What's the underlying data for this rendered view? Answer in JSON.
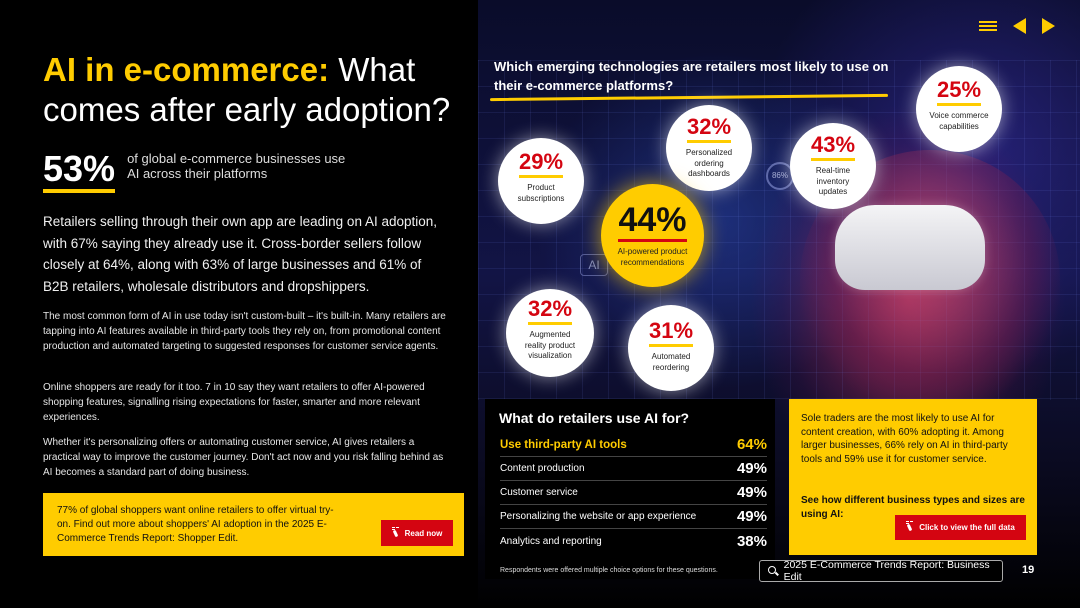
{
  "title": {
    "accent": "AI in e-commerce:",
    "rest": " What comes after early adoption?"
  },
  "stat": {
    "value": "53%",
    "desc": "of global e-commerce businesses use AI across their platforms"
  },
  "lead": "Retailers selling through their own app are leading on AI adoption, with 67% saying they already use it. Cross-border sellers follow closely at 64%, along with 63% of large businesses and 61% of B2B retailers, wholesale distributors and dropshippers.",
  "paragraphs": [
    "The most common form of AI in use today isn't custom-built – it's built-in. Many retailers are tapping into AI features available in third-party tools they rely on, from promotional content production and automated targeting to suggested responses for customer service agents.",
    "Online shoppers are ready for it too. 7 in 10 say they want retailers to offer AI-powered shopping features, signalling rising expectations for faster, smarter and more relevant experiences.",
    "Whether it's personalizing offers or automating customer service, AI gives retailers a practical way to improve the customer journey. Don't act now and you risk falling behind as AI becomes a standard part of doing business."
  ],
  "promo": {
    "text": "77% of global shoppers want online retailers to offer virtual try-on. Find out more about shoppers' AI adoption in the 2025 E-Commerce Trends Report: Shopper Edit.",
    "button": "Read now"
  },
  "question": "Which emerging technologies are retailers most likely to use on their e-commerce platforms?",
  "decor": {
    "ai_chip": "AI",
    "gauge": "86%"
  },
  "bubbles": [
    {
      "pct": "29%",
      "label": "Product subscriptions"
    },
    {
      "pct": "32%",
      "label": "Personalized ordering dashboards"
    },
    {
      "pct": "43%",
      "label": "Real-time inventory updates"
    },
    {
      "pct": "25%",
      "label": "Voice commerce capabilities"
    },
    {
      "pct": "44%",
      "label": "AI-powered product recommendations"
    },
    {
      "pct": "32%",
      "label": "Augmented reality product visualization"
    },
    {
      "pct": "31%",
      "label": "Automated reordering"
    }
  ],
  "panel": {
    "title": "What do retailers use AI for?",
    "rows": [
      {
        "label": "Use third-party AI tools",
        "value": "64%"
      },
      {
        "label": "Content production",
        "value": "49%"
      },
      {
        "label": "Customer service",
        "value": "49%"
      },
      {
        "label": "Personalizing the website or app experience",
        "value": "49%"
      },
      {
        "label": "Analytics and reporting",
        "value": "38%"
      }
    ],
    "footnote": "Respondents were offered multiple choice options for these questions."
  },
  "ypanel": {
    "text": "Sole traders are the most likely to use AI for content creation, with 60% adopting it. Among larger businesses, 66% rely on AI in third-party tools and 59% use it for customer service.",
    "cta": "See how different business types and sizes are using AI:",
    "button": "Click to view the full data"
  },
  "footer": {
    "search": "2025 E-Commerce Trends Report: Business Edit",
    "page": "19"
  },
  "colors": {
    "accent": "#ffcc00",
    "red": "#d40511"
  }
}
